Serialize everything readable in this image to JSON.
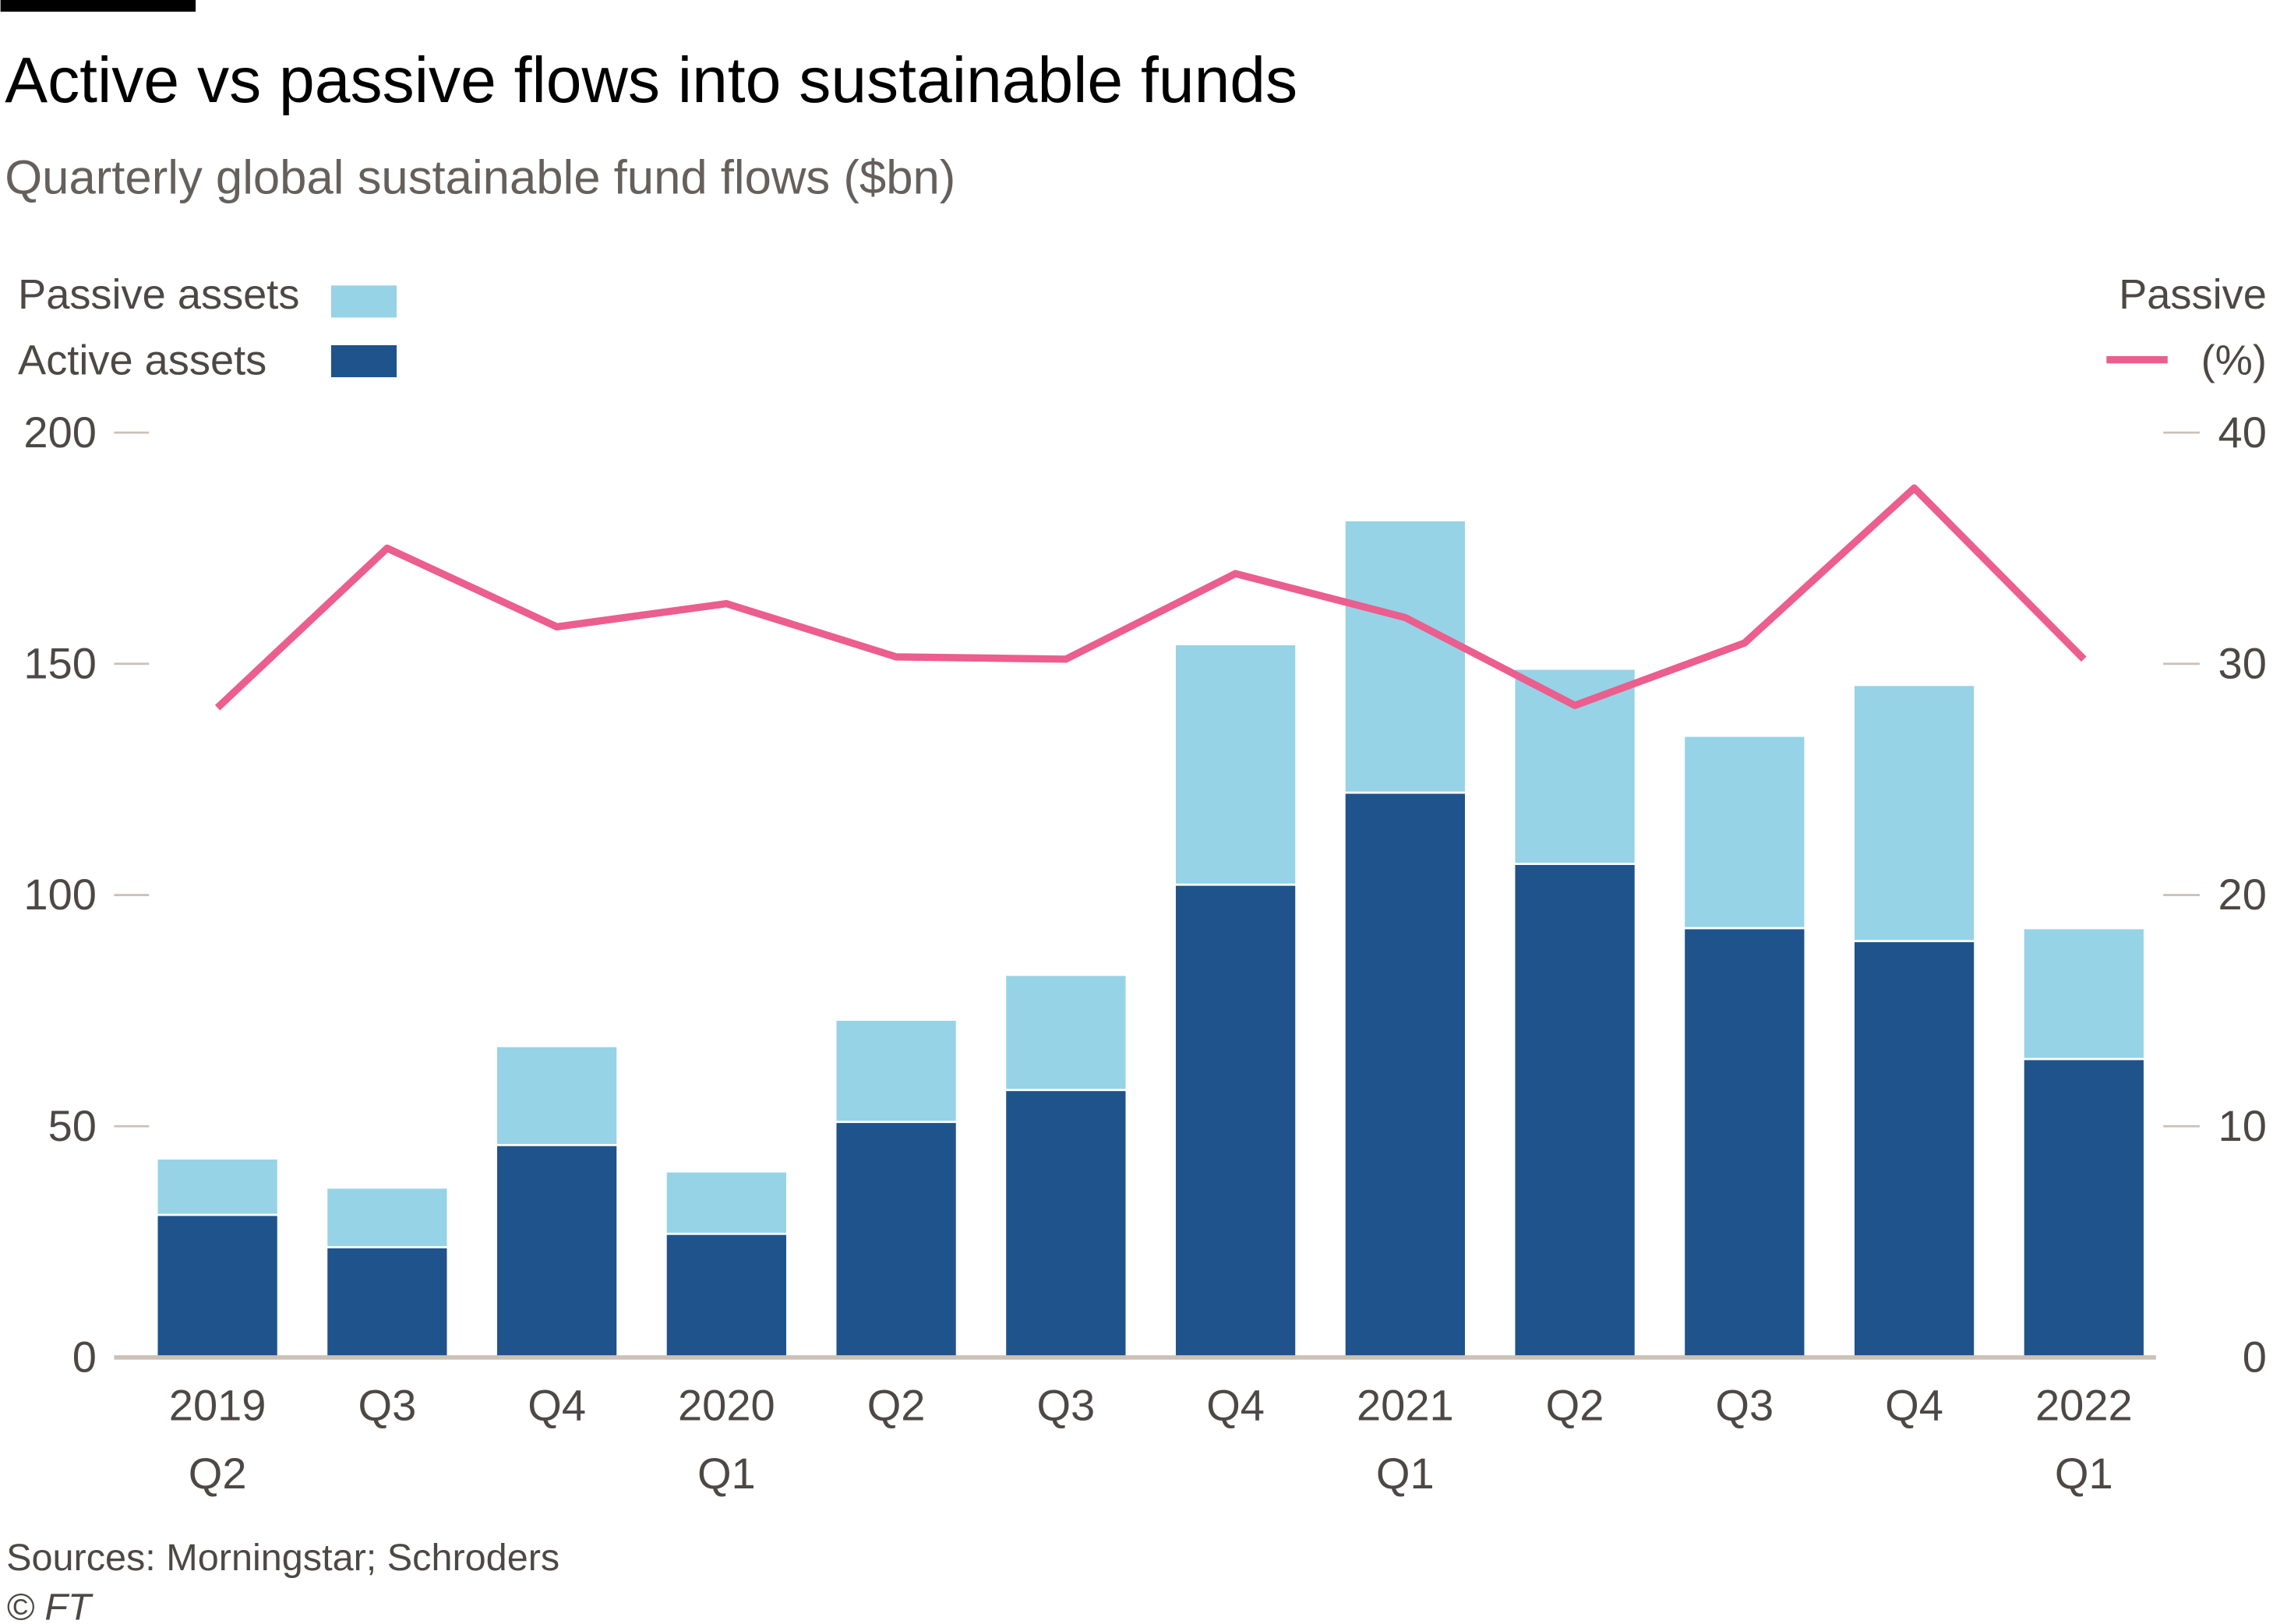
{
  "title": "Active vs passive flows into sustainable funds",
  "subtitle": "Quarterly global sustainable fund flows ($bn)",
  "source": "Sources: Morningstar; Schroders",
  "copyright": "© FT",
  "colors": {
    "passive": "#96d3e6",
    "active": "#1f538b",
    "line": "#eb5e8d",
    "axis": "#ccc1b7"
  },
  "legend": {
    "passive": "Passive assets",
    "active": "Active assets",
    "line_top": "Passive",
    "line_bottom": "(%)"
  },
  "chart_data": {
    "type": "bar",
    "stacked": true,
    "categories": [
      "2019 Q2",
      "Q3",
      "Q4",
      "2020 Q1",
      "Q2",
      "Q3",
      "Q4",
      "2021 Q1",
      "Q2",
      "Q3",
      "Q4",
      "2022 Q1"
    ],
    "x_tick_labels": [
      [
        "2019",
        "Q2"
      ],
      [
        "Q3"
      ],
      [
        "Q4"
      ],
      [
        "2020",
        "Q1"
      ],
      [
        "Q2"
      ],
      [
        "Q3"
      ],
      [
        "Q4"
      ],
      [
        "2021",
        "Q1"
      ],
      [
        "Q2"
      ],
      [
        "Q3"
      ],
      [
        "Q4"
      ],
      [
        "2022",
        "Q1"
      ]
    ],
    "series": [
      {
        "name": "Active assets",
        "type": "bar",
        "axis": "left",
        "values": [
          30.6,
          23.6,
          45.7,
          26.5,
          50.7,
          57.6,
          102,
          121.9,
          106.5,
          92.6,
          89.8,
          64.3
        ]
      },
      {
        "name": "Passive assets",
        "type": "bar",
        "axis": "left",
        "values": [
          12.2,
          12.9,
          21.4,
          13.5,
          22.1,
          24.9,
          52,
          58.9,
          42.2,
          41.6,
          55.4,
          28.3
        ]
      },
      {
        "name": "Passive (%)",
        "type": "line",
        "axis": "right",
        "values": [
          28.1,
          35,
          31.6,
          32.6,
          30.3,
          30.2,
          33.9,
          32,
          28.2,
          30.9,
          37.6,
          30.2
        ]
      }
    ],
    "left_axis": {
      "ylim": [
        0,
        200
      ],
      "ticks": [
        "0",
        "50",
        "100",
        "150",
        "200"
      ]
    },
    "right_axis": {
      "ylim": [
        0,
        40
      ],
      "ticks": [
        "0",
        "10",
        "20",
        "30",
        "40"
      ]
    },
    "grid": false,
    "legend_placement": "top"
  }
}
